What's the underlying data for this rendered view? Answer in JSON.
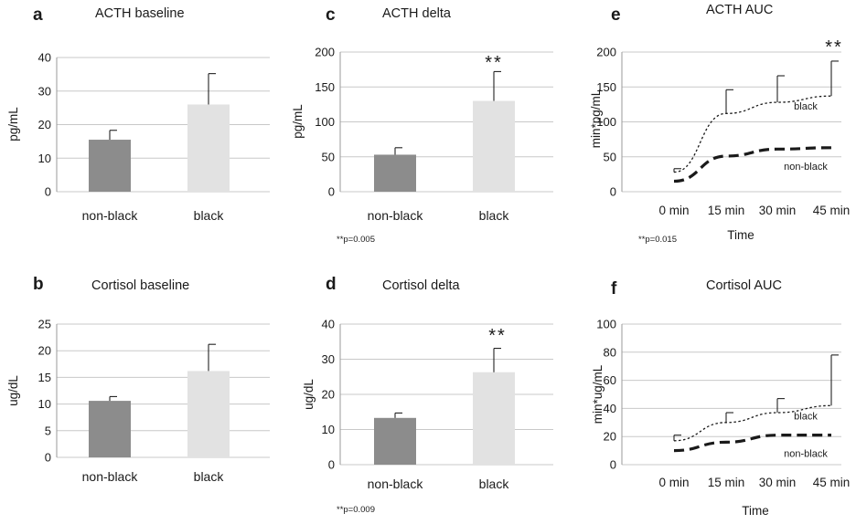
{
  "colors": {
    "nonblack_bar": "#8c8c8c",
    "black_bar": "#e2e2e2",
    "gridline": "#c8c8c8",
    "axis": "#9a9a9a",
    "ink": "#1a1a1a"
  },
  "chart_data": [
    {
      "panel": "a",
      "type": "bar",
      "title": "ACTH baseline",
      "xlabel": "",
      "ylabel": "pg/mL",
      "categories": [
        "non-black",
        "black"
      ],
      "values": [
        15.5,
        26
      ],
      "errors": [
        2.8,
        9.2
      ],
      "ylim": [
        0,
        40
      ],
      "yticks": [
        "0",
        "10",
        "20",
        "30",
        "40"
      ],
      "grid": true,
      "significance": "",
      "footnote": ""
    },
    {
      "panel": "b",
      "type": "bar",
      "title": "Cortisol baseline",
      "xlabel": "",
      "ylabel": "ug/dL",
      "categories": [
        "non-black",
        "black"
      ],
      "values": [
        10.6,
        16.2
      ],
      "errors": [
        0.8,
        5.0
      ],
      "ylim": [
        0,
        25
      ],
      "yticks": [
        "0",
        "5",
        "10",
        "15",
        "20",
        "25"
      ],
      "grid": true,
      "significance": "",
      "footnote": ""
    },
    {
      "panel": "c",
      "type": "bar",
      "title": "ACTH delta",
      "xlabel": "",
      "ylabel": "pg/mL",
      "categories": [
        "non-black",
        "black"
      ],
      "values": [
        53,
        130
      ],
      "errors": [
        10,
        42
      ],
      "ylim": [
        0,
        200
      ],
      "yticks": [
        "0",
        "50",
        "100",
        "150",
        "200"
      ],
      "grid": true,
      "significance": "**",
      "footnote": "**p=0.005"
    },
    {
      "panel": "d",
      "type": "bar",
      "title": "Cortisol delta",
      "xlabel": "",
      "ylabel": "ug/dL",
      "categories": [
        "non-black",
        "black"
      ],
      "values": [
        13.3,
        26.3
      ],
      "errors": [
        1.4,
        6.8
      ],
      "ylim": [
        0,
        40
      ],
      "yticks": [
        "0",
        "10",
        "20",
        "30",
        "40"
      ],
      "grid": true,
      "significance": "**",
      "footnote": "**p=0.009"
    },
    {
      "panel": "e",
      "type": "line",
      "title": "ACTH AUC",
      "xlabel": "Time",
      "ylabel": "min*pg/mL",
      "x": [
        "0 min",
        "15 min",
        "30 min",
        "45 min"
      ],
      "series": [
        {
          "name": "black",
          "values": [
            28,
            112,
            128,
            137
          ],
          "errors": [
            5,
            34,
            38,
            50
          ],
          "style": "dotted"
        },
        {
          "name": "non-black",
          "values": [
            15,
            51,
            61,
            63
          ],
          "errors": null,
          "style": "dashed"
        }
      ],
      "ylim": [
        0,
        200
      ],
      "yticks": [
        "0",
        "50",
        "100",
        "150",
        "200"
      ],
      "grid": true,
      "significance": "**",
      "footnote": "**p=0.015"
    },
    {
      "panel": "f",
      "type": "line",
      "title": "Cortisol AUC",
      "xlabel": "Time",
      "ylabel": "min*ug/mL",
      "x": [
        "0 min",
        "15 min",
        "30 min",
        "45 min"
      ],
      "series": [
        {
          "name": "black",
          "values": [
            17,
            30,
            37,
            42
          ],
          "errors": [
            4,
            7,
            10,
            36
          ],
          "style": "dotted"
        },
        {
          "name": "non-black",
          "values": [
            10,
            16,
            21,
            21
          ],
          "errors": null,
          "style": "dashed"
        }
      ],
      "ylim": [
        0,
        100
      ],
      "yticks": [
        "0",
        "20",
        "40",
        "60",
        "80",
        "100"
      ],
      "grid": true,
      "significance": "",
      "footnote": ""
    }
  ]
}
